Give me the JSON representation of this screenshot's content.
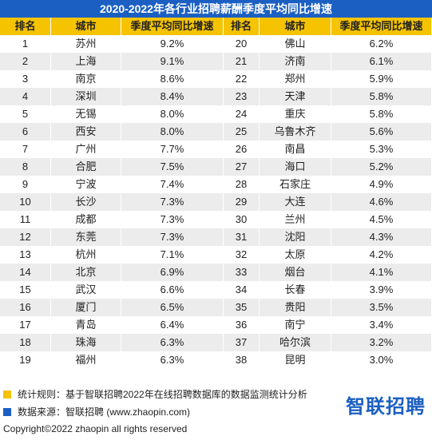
{
  "title": "2020-2022年各行业招聘薪酬季度平均同比增速",
  "table": {
    "header": [
      "排名",
      "城市",
      "季度平均同比增速",
      "排名",
      "城市",
      "季度平均同比增速"
    ],
    "rows": [
      [
        "1",
        "苏州",
        "9.2%",
        "20",
        "佛山",
        "6.2%"
      ],
      [
        "2",
        "上海",
        "9.1%",
        "21",
        "济南",
        "6.1%"
      ],
      [
        "3",
        "南京",
        "8.6%",
        "22",
        "郑州",
        "5.9%"
      ],
      [
        "4",
        "深圳",
        "8.4%",
        "23",
        "天津",
        "5.8%"
      ],
      [
        "5",
        "无锡",
        "8.0%",
        "24",
        "重庆",
        "5.8%"
      ],
      [
        "6",
        "西安",
        "8.0%",
        "25",
        "乌鲁木齐",
        "5.6%"
      ],
      [
        "7",
        "广州",
        "7.7%",
        "26",
        "南昌",
        "5.3%"
      ],
      [
        "8",
        "合肥",
        "7.5%",
        "27",
        "海口",
        "5.2%"
      ],
      [
        "9",
        "宁波",
        "7.4%",
        "28",
        "石家庄",
        "4.9%"
      ],
      [
        "10",
        "长沙",
        "7.3%",
        "29",
        "大连",
        "4.6%"
      ],
      [
        "11",
        "成都",
        "7.3%",
        "30",
        "兰州",
        "4.5%"
      ],
      [
        "12",
        "东莞",
        "7.3%",
        "31",
        "沈阳",
        "4.3%"
      ],
      [
        "13",
        "杭州",
        "7.1%",
        "32",
        "太原",
        "4.2%"
      ],
      [
        "14",
        "北京",
        "6.9%",
        "33",
        "烟台",
        "4.1%"
      ],
      [
        "15",
        "武汉",
        "6.6%",
        "34",
        "长春",
        "3.9%"
      ],
      [
        "16",
        "厦门",
        "6.5%",
        "35",
        "贵阳",
        "3.5%"
      ],
      [
        "17",
        "青岛",
        "6.4%",
        "36",
        "南宁",
        "3.4%"
      ],
      [
        "18",
        "珠海",
        "6.3%",
        "37",
        "哈尔滨",
        "3.2%"
      ],
      [
        "19",
        "福州",
        "6.3%",
        "38",
        "昆明",
        "3.0%"
      ]
    ]
  },
  "notes": [
    "统计规则：基于智联招聘2022年在线招聘数据库的数据监测统计分析",
    "数据来源：智联招聘 (www.zhaopin.com)"
  ],
  "logo": "智联招聘",
  "copyright": "Copyright©2022 zhaopin all rights reserved"
}
